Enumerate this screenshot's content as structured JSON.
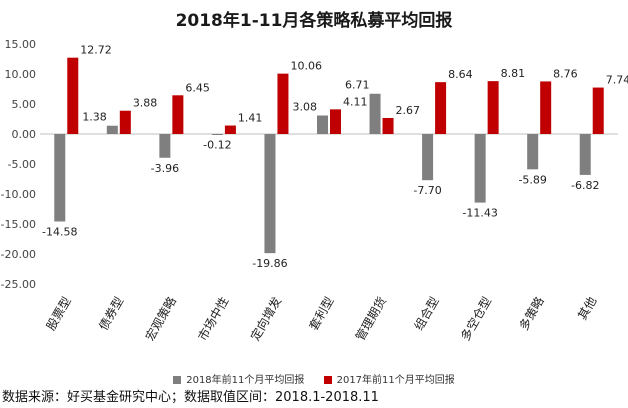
{
  "chart_data": {
    "type": "bar",
    "title": "2018年1-11月各策略私募平均回报",
    "categories": [
      "股票型",
      "债券型",
      "宏观策略",
      "市场中性",
      "定向增发",
      "套利型",
      "管理期货",
      "组合型",
      "多空仓型",
      "多策略",
      "其他"
    ],
    "series": [
      {
        "name": "2018年前11个月平均回报",
        "color": "#7f7f7f",
        "values": [
          -14.58,
          1.38,
          -3.96,
          -0.12,
          -19.86,
          3.08,
          6.71,
          -7.7,
          -11.43,
          -5.89,
          -6.82
        ]
      },
      {
        "name": "2017年前11个月平均回报",
        "color": "#c00000",
        "values": [
          12.72,
          3.88,
          6.45,
          1.41,
          10.06,
          4.11,
          2.67,
          8.64,
          8.81,
          8.76,
          7.74
        ]
      }
    ],
    "yticks": [
      "15.00",
      "10.00",
      "5.00",
      "0.00",
      "-5.00",
      "-10.00",
      "-15.00",
      "-20.00",
      "-25.00"
    ],
    "data_labels": [
      [
        "-14.58",
        "1.38",
        "-3.96",
        "-0.12",
        "-19.86",
        "3.08",
        "6.71",
        "-7.70",
        "-11.43",
        "-5.89",
        "-6.82"
      ],
      [
        "12.72",
        "3.88",
        "6.45",
        "1.41",
        "10.06",
        "4.11",
        "2.67",
        "8.64",
        "8.81",
        "8.76",
        "7.74"
      ]
    ],
    "ylim": [
      -25,
      15
    ],
    "xlabel": "",
    "ylabel": "",
    "grid": false,
    "legend_position": "bottom"
  },
  "source_note": "数据来源：好买基金研究中心；数据取值区间：2018.1-2018.11"
}
